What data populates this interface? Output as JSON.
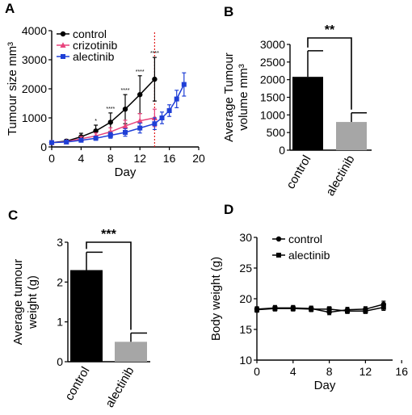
{
  "colors": {
    "control": "#000000",
    "crizotinib": "#e8437c",
    "alectinib": "#1f3fd6",
    "bar_control": "#000000",
    "bar_alectinib": "#a6a6a6",
    "dosing_line": "#e02020"
  },
  "chart_data": [
    {
      "panel": "A",
      "type": "line",
      "xlabel": "Day",
      "ylabel": "Tumour size mm³",
      "xlim": [
        0,
        20
      ],
      "ylim": [
        0,
        4000
      ],
      "xticks": [
        "0",
        "4",
        "8",
        "12",
        "16",
        "20"
      ],
      "yticks": [
        "0",
        "1000",
        "2000",
        "3000",
        "4000"
      ],
      "legend_position": "top-left",
      "vline_day": 14,
      "series": [
        {
          "name": "control",
          "marker": "circle",
          "x": [
            0,
            2,
            4,
            6,
            8,
            10,
            12,
            14
          ],
          "y": [
            150,
            200,
            350,
            550,
            850,
            1300,
            1800,
            2330
          ],
          "err": [
            40,
            60,
            120,
            200,
            320,
            500,
            650,
            750
          ]
        },
        {
          "name": "crizotinib",
          "marker": "triangle",
          "x": [
            0,
            2,
            4,
            6,
            8,
            10,
            12,
            14
          ],
          "y": [
            150,
            180,
            280,
            380,
            520,
            720,
            900,
            1000
          ],
          "err": [
            30,
            40,
            80,
            100,
            140,
            200,
            250,
            300
          ]
        },
        {
          "name": "alectinib",
          "marker": "square",
          "x": [
            0,
            2,
            4,
            6,
            8,
            10,
            12,
            14,
            15,
            16,
            17,
            18
          ],
          "y": [
            150,
            170,
            230,
            300,
            400,
            500,
            650,
            800,
            1000,
            1250,
            1650,
            2150
          ],
          "err": [
            30,
            40,
            60,
            70,
            100,
            130,
            170,
            200,
            200,
            200,
            300,
            400
          ]
        }
      ],
      "annotations": [
        {
          "x": 6,
          "text": "*"
        },
        {
          "x": 8,
          "text": "****"
        },
        {
          "x": 10,
          "text": "****"
        },
        {
          "x": 12,
          "text": "****"
        },
        {
          "x": 14,
          "text": "****"
        }
      ]
    },
    {
      "panel": "B",
      "type": "bar",
      "ylabel": "Average Tumour volume mm³",
      "ylim": [
        0,
        3000
      ],
      "yticks": [
        "0",
        "500",
        "1000",
        "1500",
        "2000",
        "2500",
        "3000"
      ],
      "categories": [
        "control",
        "alectinib"
      ],
      "values": [
        2080,
        800
      ],
      "errors": [
        740,
        260
      ],
      "significance": "**"
    },
    {
      "panel": "C",
      "type": "bar",
      "ylabel": "Average tumour weight (g)",
      "ylim": [
        0,
        3
      ],
      "yticks": [
        "0",
        "1",
        "2",
        "3"
      ],
      "categories": [
        "control",
        "alectinib"
      ],
      "values": [
        2.3,
        0.5
      ],
      "errors": [
        0.45,
        0.22
      ],
      "significance": "***"
    },
    {
      "panel": "D",
      "type": "line",
      "xlabel": "Day",
      "ylabel": "Body weight (g)",
      "xlim": [
        0,
        15
      ],
      "ylim": [
        10,
        30
      ],
      "xticks": [
        "0",
        "4",
        "8",
        "12",
        "16"
      ],
      "yticks": [
        "10",
        "15",
        "20",
        "25",
        "30"
      ],
      "legend_position": "top-left",
      "series": [
        {
          "name": "control",
          "marker": "circle",
          "x": [
            0,
            2,
            4,
            6,
            8,
            10,
            12,
            14
          ],
          "y": [
            18.3,
            18.5,
            18.5,
            18.4,
            17.8,
            18.2,
            18.3,
            19.1
          ],
          "err": [
            0.4,
            0.4,
            0.4,
            0.4,
            0.4,
            0.4,
            0.4,
            0.5
          ]
        },
        {
          "name": "alectinib",
          "marker": "square",
          "x": [
            0,
            2,
            4,
            6,
            8,
            10,
            12,
            14
          ],
          "y": [
            18.2,
            18.4,
            18.4,
            18.3,
            18.3,
            18.0,
            18.0,
            18.6
          ],
          "err": [
            0.4,
            0.4,
            0.4,
            0.4,
            0.4,
            0.4,
            0.4,
            0.5
          ]
        }
      ]
    }
  ]
}
